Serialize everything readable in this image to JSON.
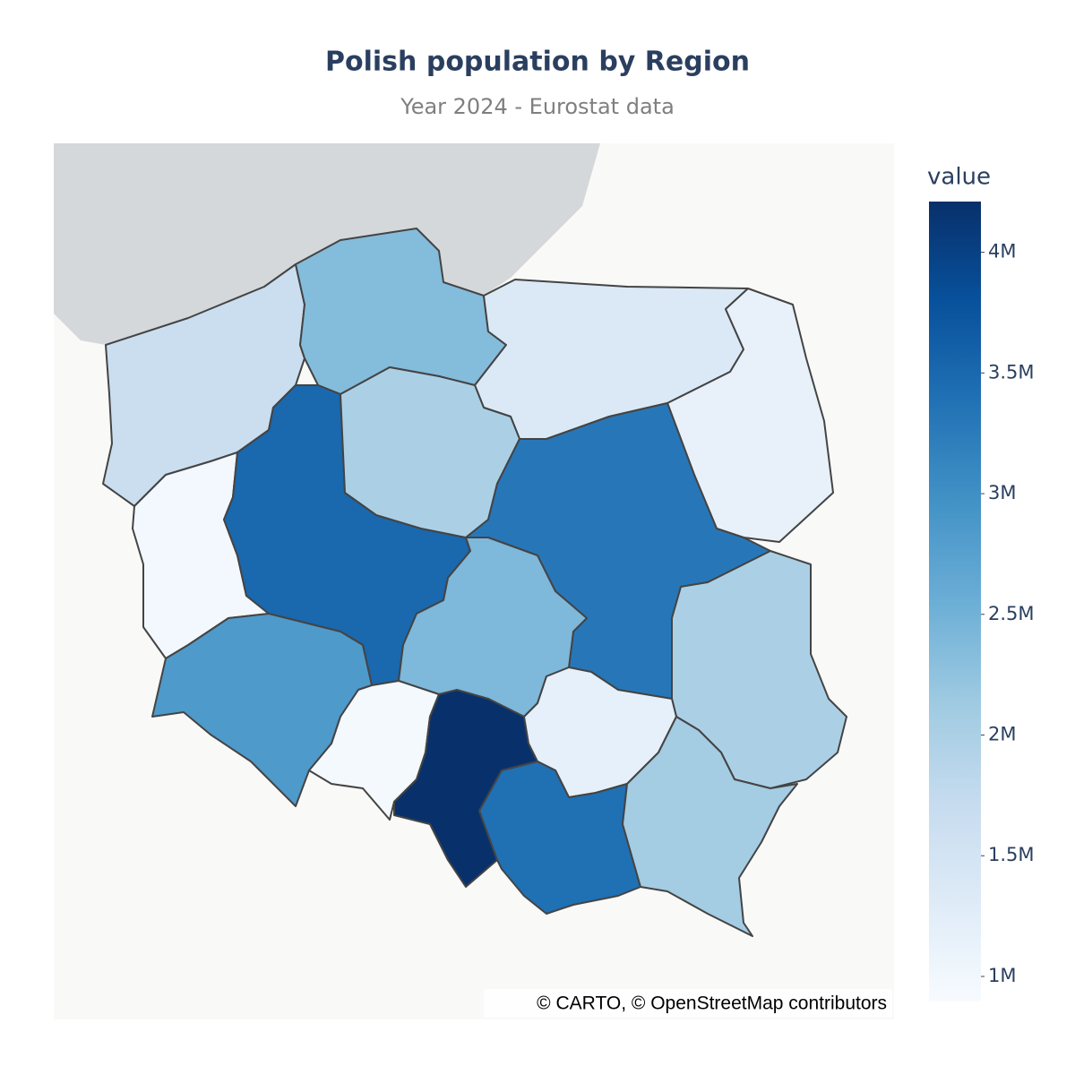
{
  "chart_data": {
    "type": "choropleth",
    "title": "Polish population by Region",
    "subtitle": "Year 2024 - Eurostat data",
    "attribution": "© CARTO, © OpenStreetMap contributors",
    "values": [
      1650000,
      2350000,
      1370000,
      1150000,
      970000,
      3500000,
      2000000,
      3300000,
      2400000,
      2000000,
      2850000,
      950000,
      4200000,
      1180000,
      3400000,
      2080000
    ],
    "colorscale": [
      "#f7fbff",
      "#deebf7",
      "#c6dbef",
      "#9ecae1",
      "#6baed6",
      "#4292c6",
      "#2171b5",
      "#08519c",
      "#08306b"
    ],
    "colorbar": {
      "title": "value",
      "range": [
        896000,
        4210000
      ],
      "ticks": [
        {
          "value": 1000000,
          "label": "1M"
        },
        {
          "value": 1500000,
          "label": "1.5M"
        },
        {
          "value": 2000000,
          "label": "2M"
        },
        {
          "value": 2500000,
          "label": "2.5M"
        },
        {
          "value": 3000000,
          "label": "3M"
        },
        {
          "value": 3500000,
          "label": "3.5M"
        },
        {
          "value": 4000000,
          "label": "4M"
        }
      ]
    }
  }
}
